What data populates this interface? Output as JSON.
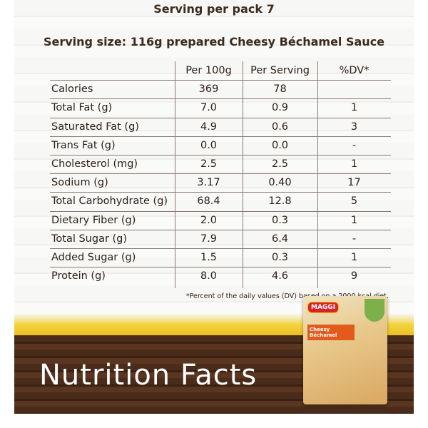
{
  "header": {
    "line1": "Serving per pack 7",
    "line2": "Serving size: 116g prepared Cheesy Béchamel Sauce"
  },
  "table": {
    "columns": [
      "Per 100g",
      "Per Serving",
      "%DV*"
    ],
    "rows": [
      [
        "Calories",
        "369",
        "78",
        ""
      ],
      [
        "Total Fat (g)",
        "7.0",
        "0.9",
        "1"
      ],
      [
        "Saturated Fat (g)",
        "4.9",
        "0.6",
        "3"
      ],
      [
        "Trans Fat (g)",
        "0.0",
        "0.0",
        "-"
      ],
      [
        "Cholesterol (mg)",
        "2.5",
        "2.5",
        "1"
      ],
      [
        "Sodium (g)",
        "3.17",
        "0.40",
        "17"
      ],
      [
        "Total Carbohydrate (g)",
        "68.4",
        "12.8",
        "5"
      ],
      [
        "Dietary Fiber (g)",
        "2.0",
        "0.3",
        "1"
      ],
      [
        "Total Sugar (g)",
        "7.9",
        "6.4",
        "-"
      ],
      [
        "Added Sugar (g)",
        "1.5",
        "0.3",
        "1"
      ],
      [
        "Protein (g)",
        "8.0",
        "4.6",
        "9"
      ]
    ]
  },
  "footnote": "*Percent of the daily values (DV) based on a 2000 kcal diet.",
  "title": "Nutrition Facts",
  "package": {
    "brand": "MAGGI",
    "product": "Cheesy Béchamel"
  }
}
